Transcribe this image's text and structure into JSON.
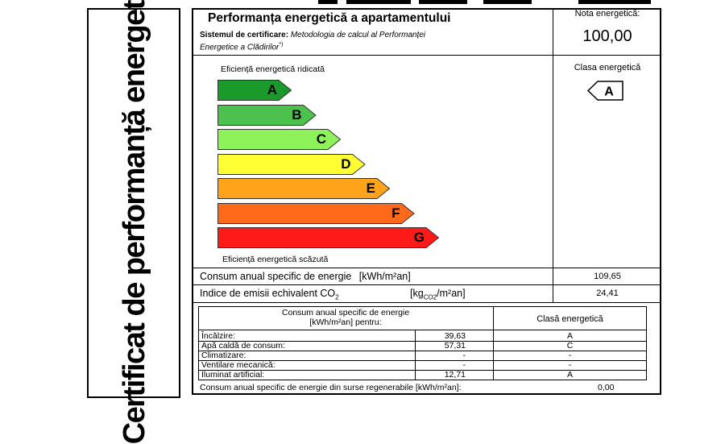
{
  "side_title": "Certificat de performanță energetică",
  "header": {
    "title": "Performanța energetică a apartamentului",
    "system_label": "Sistemul de certificare:",
    "system_value_line1": "Metodologia de calcul al Performanței",
    "system_value_line2": "Energetice a Clădirilor",
    "system_footnote": "*)"
  },
  "nota": {
    "label": "Nota energetică:",
    "value": "100,00"
  },
  "clasa": {
    "label": "Clasa energetică",
    "value": "A"
  },
  "scale": {
    "top_label": "Eficiență energetică ridicată",
    "bottom_label": "Eficiență energetică scăzută",
    "classes": [
      {
        "letter": "A",
        "color": "#1a9a2a"
      },
      {
        "letter": "B",
        "color": "#4cc24c"
      },
      {
        "letter": "C",
        "color": "#8ef25a"
      },
      {
        "letter": "D",
        "color": "#ffff33"
      },
      {
        "letter": "E",
        "color": "#ffa31a"
      },
      {
        "letter": "F",
        "color": "#ff6a1a"
      },
      {
        "letter": "G",
        "color": "#ff1a1a"
      }
    ]
  },
  "consum": {
    "label": "Consum anual specific de energie",
    "unit": "[kWh/m²an]",
    "value": "109,65"
  },
  "emisii": {
    "label": "Indice de emisii echivalent CO",
    "label_sub": "2",
    "unit_pre": "[kg",
    "unit_sub": "CO2",
    "unit_post": "/m²an]",
    "value": "24,41"
  },
  "table": {
    "header_left_line1": "Consum anual specific de energie",
    "header_left_line2": "[kWh/m²an] pentru:",
    "header_right": "Clasă energetică",
    "rows": [
      {
        "name": "Încălzire:",
        "value": "39,63",
        "class": "A"
      },
      {
        "name": "Apă caldă de consum:",
        "value": "57,31",
        "class": "C"
      },
      {
        "name": "Climatizare:",
        "value": "-",
        "class": "-"
      },
      {
        "name": "Ventilare mecanică:",
        "value": "-",
        "class": "-"
      },
      {
        "name": "Iluminat artificial:",
        "value": "12,71",
        "class": "A"
      }
    ]
  },
  "footer": {
    "label": "Consum anual specific de energie din surse regenerabile [kWh/m²an]:",
    "value": "0,00"
  }
}
